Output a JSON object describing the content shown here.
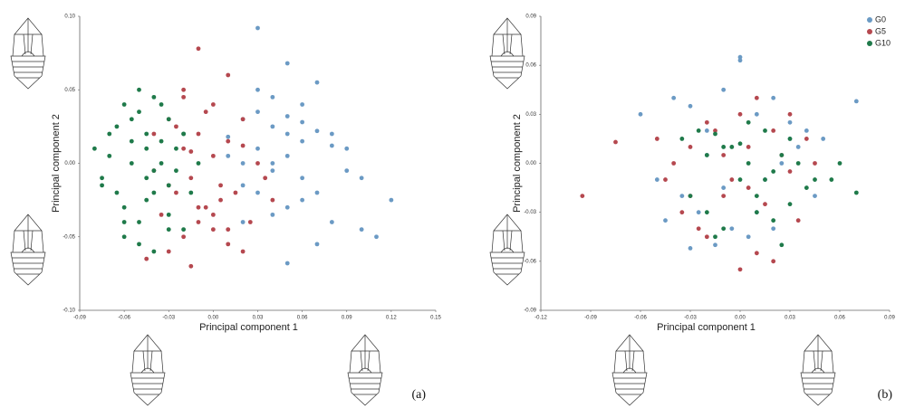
{
  "chart_data": [
    {
      "type": "scatter",
      "xlabel": "Principal component 1",
      "ylabel": "Principal component 2",
      "panel_label": "(a)",
      "xlim": [
        -0.09,
        0.15
      ],
      "ylim": [
        -0.1,
        0.1
      ],
      "xticks": [
        -0.09,
        -0.06,
        -0.03,
        {
          "value": 0,
          "label": "0.00"
        },
        0.03,
        0.06,
        0.09,
        0.12,
        0.15
      ],
      "yticks": [
        {
          "value": -0.1,
          "label": "-0.10"
        },
        -0.05,
        {
          "value": 0,
          "label": "0.00"
        },
        0.05,
        {
          "value": 0.1,
          "label": "0.10"
        }
      ],
      "series": [
        {
          "color": "#6b9ac4",
          "x": [
            0.03,
            0.05,
            0.07,
            0.04,
            0.06,
            0.02,
            0.08,
            0.09,
            0.1,
            0.12,
            0.05,
            0.03,
            0.01,
            0.04,
            0.06,
            0.07,
            0.02,
            0.05,
            0.08,
            0.03,
            0.04,
            0.06,
            0.1,
            0.11,
            0.02,
            0.05,
            0.07,
            0.04,
            0.03,
            0.06,
            0.09,
            0.01,
            0.05,
            0.08,
            0.03,
            0.06,
            0.04,
            0.07,
            0.02,
            0.05
          ],
          "values": [
            0.092,
            0.068,
            0.055,
            0.045,
            0.04,
            0.03,
            0.02,
            0.01,
            -0.01,
            -0.025,
            0.02,
            0.01,
            0.005,
            -0.005,
            -0.01,
            -0.02,
            -0.015,
            -0.03,
            -0.04,
            0.035,
            0.025,
            0.015,
            -0.045,
            -0.05,
            0.0,
            0.005,
            -0.055,
            -0.035,
            -0.02,
            0.028,
            -0.005,
            0.018,
            -0.068,
            0.012,
            0.05,
            -0.025,
            0.0,
            0.022,
            -0.04,
            0.032
          ]
        },
        {
          "color": "#b5484f",
          "x": [
            -0.01,
            0.01,
            -0.02,
            0.0,
            -0.03,
            0.02,
            -0.01,
            0.01,
            -0.02,
            0.0,
            0.03,
            -0.04,
            -0.015,
            0.005,
            -0.025,
            0.015,
            -0.005,
            -0.035,
            0.025,
            -0.01,
            0.0,
            -0.02,
            0.01,
            -0.03,
            0.02,
            -0.045,
            -0.015,
            0.005,
            -0.025,
            0.035,
            -0.005,
            -0.01,
            0.02,
            -0.04,
            0.0,
            -0.02,
            0.01,
            -0.03,
            0.04,
            -0.015
          ],
          "values": [
            0.078,
            0.06,
            0.045,
            0.04,
            0.03,
            0.03,
            0.02,
            0.015,
            0.01,
            0.005,
            0.0,
            -0.005,
            -0.01,
            -0.015,
            -0.02,
            -0.02,
            -0.03,
            -0.035,
            -0.04,
            -0.04,
            -0.045,
            -0.05,
            -0.055,
            -0.06,
            -0.06,
            -0.065,
            -0.07,
            -0.025,
            0.025,
            -0.01,
            0.035,
            -0.03,
            0.012,
            0.02,
            -0.035,
            0.05,
            -0.045,
            -0.015,
            -0.025,
            0.008
          ]
        },
        {
          "color": "#1f7a4a",
          "x": [
            -0.08,
            -0.07,
            -0.06,
            -0.05,
            -0.04,
            -0.03,
            -0.02,
            -0.01,
            -0.075,
            -0.065,
            -0.055,
            -0.045,
            -0.035,
            -0.025,
            -0.015,
            -0.07,
            -0.06,
            -0.05,
            -0.04,
            -0.03,
            -0.02,
            -0.065,
            -0.055,
            -0.045,
            -0.035,
            -0.025,
            -0.06,
            -0.05,
            -0.04,
            -0.03,
            -0.055,
            -0.045,
            -0.035,
            -0.02,
            -0.075,
            -0.05,
            -0.04,
            -0.03,
            -0.06,
            -0.045
          ],
          "values": [
            0.01,
            0.02,
            0.04,
            0.05,
            0.045,
            0.03,
            0.02,
            0.0,
            -0.01,
            -0.02,
            0.0,
            0.01,
            0.015,
            -0.005,
            -0.02,
            0.005,
            -0.03,
            -0.04,
            -0.02,
            -0.035,
            -0.045,
            0.025,
            0.03,
            -0.01,
            0.0,
            0.01,
            -0.05,
            -0.055,
            -0.06,
            -0.045,
            0.015,
            -0.025,
            0.04,
            0.02,
            -0.015,
            0.035,
            -0.005,
            -0.015,
            -0.04,
            0.02
          ]
        }
      ]
    },
    {
      "type": "scatter",
      "xlabel": "Principal component 1",
      "ylabel": "Principal component 2",
      "panel_label": "(b)",
      "legend": "upper right",
      "xlim": [
        -0.12,
        0.09
      ],
      "ylim": [
        -0.09,
        0.09
      ],
      "xticks": [
        -0.12,
        -0.09,
        -0.06,
        -0.03,
        {
          "value": 0,
          "label": "0.00"
        },
        0.03,
        0.06,
        0.09
      ],
      "yticks": [
        -0.09,
        -0.06,
        -0.03,
        {
          "value": 0,
          "label": "0.00"
        },
        0.03,
        0.06,
        0.09
      ],
      "series": [
        {
          "name": "G0",
          "color": "#6b9ac4",
          "x": [
            -0.06,
            -0.04,
            -0.03,
            -0.02,
            -0.01,
            0.0,
            0.0,
            0.01,
            0.02,
            0.03,
            0.04,
            0.05,
            0.07,
            -0.05,
            -0.035,
            -0.025,
            -0.015,
            -0.005,
            0.005,
            0.015,
            0.025,
            0.035,
            0.045,
            -0.045,
            -0.02,
            -0.01,
            0.01,
            0.02,
            0.03,
            -0.03
          ],
          "values": [
            0.03,
            0.04,
            0.035,
            0.02,
            0.045,
            0.065,
            0.063,
            0.03,
            0.04,
            0.025,
            0.02,
            0.015,
            0.038,
            -0.01,
            -0.02,
            -0.03,
            -0.05,
            -0.04,
            -0.045,
            -0.01,
            0.0,
            0.01,
            -0.02,
            -0.035,
            0.005,
            -0.015,
            -0.03,
            -0.04,
            0.015,
            -0.052
          ]
        },
        {
          "name": "G5",
          "color": "#b5484f",
          "x": [
            -0.095,
            -0.075,
            -0.05,
            -0.04,
            -0.03,
            -0.02,
            -0.01,
            0.0,
            0.01,
            0.02,
            0.03,
            0.04,
            -0.035,
            -0.025,
            -0.015,
            -0.005,
            0.005,
            0.015,
            0.025,
            0.035,
            0.045,
            -0.045,
            -0.02,
            0.0,
            0.01,
            0.02,
            -0.01,
            0.03,
            -0.03,
            0.005
          ],
          "values": [
            -0.02,
            0.013,
            0.015,
            0.0,
            -0.02,
            0.025,
            0.005,
            -0.065,
            -0.055,
            -0.06,
            0.03,
            0.015,
            -0.03,
            -0.04,
            0.02,
            -0.01,
            0.01,
            -0.025,
            0.005,
            -0.035,
            0.0,
            -0.01,
            -0.045,
            0.03,
            0.04,
            0.02,
            -0.02,
            -0.005,
            0.01,
            -0.015
          ]
        },
        {
          "name": "G10",
          "color": "#1f7a4a",
          "x": [
            -0.035,
            -0.025,
            -0.015,
            -0.005,
            0.005,
            0.015,
            0.025,
            0.035,
            0.045,
            0.06,
            -0.03,
            -0.02,
            -0.01,
            0.0,
            0.01,
            0.02,
            0.03,
            0.04,
            0.055,
            0.07,
            -0.02,
            -0.01,
            0.0,
            0.01,
            0.02,
            0.03,
            -0.015,
            0.005,
            0.015,
            0.025
          ],
          "values": [
            0.015,
            0.02,
            0.018,
            0.01,
            0.0,
            0.02,
            0.005,
            0.0,
            -0.01,
            0.0,
            -0.02,
            -0.03,
            -0.04,
            -0.01,
            -0.02,
            -0.005,
            -0.025,
            -0.015,
            -0.01,
            -0.018,
            0.005,
            0.01,
            0.012,
            -0.03,
            -0.035,
            0.015,
            -0.045,
            0.025,
            -0.01,
            -0.05
          ]
        }
      ]
    }
  ]
}
